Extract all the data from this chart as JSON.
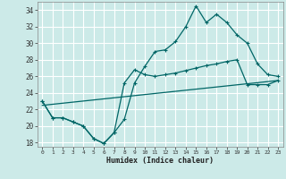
{
  "xlabel": "Humidex (Indice chaleur)",
  "bg_color": "#cceae8",
  "grid_color": "#ffffff",
  "line_color": "#006666",
  "xlim": [
    -0.5,
    23.5
  ],
  "ylim": [
    17.5,
    35
  ],
  "xticks": [
    0,
    1,
    2,
    3,
    4,
    5,
    6,
    7,
    8,
    9,
    10,
    11,
    12,
    13,
    14,
    15,
    16,
    17,
    18,
    19,
    20,
    21,
    22,
    23
  ],
  "yticks": [
    18,
    20,
    22,
    24,
    26,
    28,
    30,
    32,
    34
  ],
  "line1_x": [
    0,
    1,
    2,
    3,
    4,
    5,
    6,
    7,
    8,
    9,
    10,
    11,
    12,
    13,
    14,
    15,
    16,
    17,
    18,
    19,
    20,
    21,
    22,
    23
  ],
  "line1_y": [
    23,
    21,
    21,
    20.5,
    20,
    18.5,
    17.9,
    19.2,
    20.8,
    25.2,
    27.2,
    29.0,
    29.2,
    30.2,
    32.0,
    34.5,
    32.5,
    33.5,
    32.5,
    31.0,
    30.0,
    27.5,
    26.2,
    26.0
  ],
  "line2_x": [
    0,
    1,
    2,
    3,
    4,
    5,
    6,
    7,
    8,
    9,
    10,
    11,
    12,
    13,
    14,
    15,
    16,
    17,
    18,
    19,
    20,
    21,
    22,
    23
  ],
  "line2_y": [
    23,
    21,
    21,
    20.5,
    20,
    18.5,
    17.9,
    19.2,
    25.2,
    26.8,
    26.2,
    26.0,
    26.2,
    26.4,
    26.7,
    27.0,
    27.3,
    27.5,
    27.8,
    28.0,
    25.0,
    25.0,
    25.0,
    25.5
  ],
  "line3_x": [
    0,
    23
  ],
  "line3_y": [
    22.5,
    25.5
  ]
}
